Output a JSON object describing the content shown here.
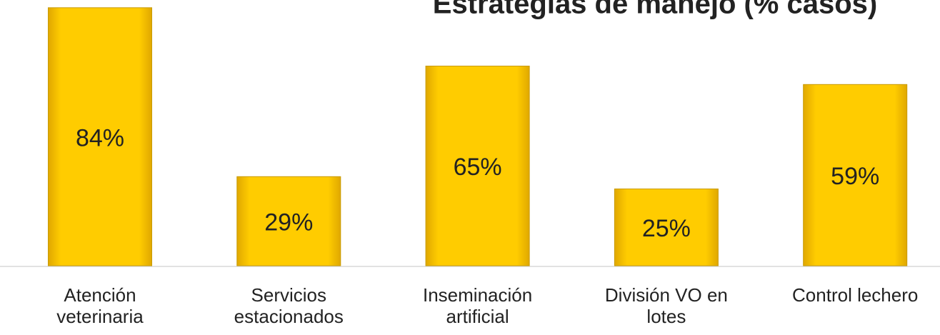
{
  "chart_data": {
    "type": "bar",
    "title": "Estrategias de manejo (% casos)",
    "categories": [
      "Atención veterinaria",
      "Servicios estacionados",
      "Inseminación artificial",
      "División VO en lotes",
      "Control lechero"
    ],
    "values": [
      84,
      29,
      65,
      25,
      59
    ],
    "value_labels": [
      "84%",
      "29%",
      "65%",
      "25%",
      "59%"
    ],
    "color": "#ffcc00"
  }
}
